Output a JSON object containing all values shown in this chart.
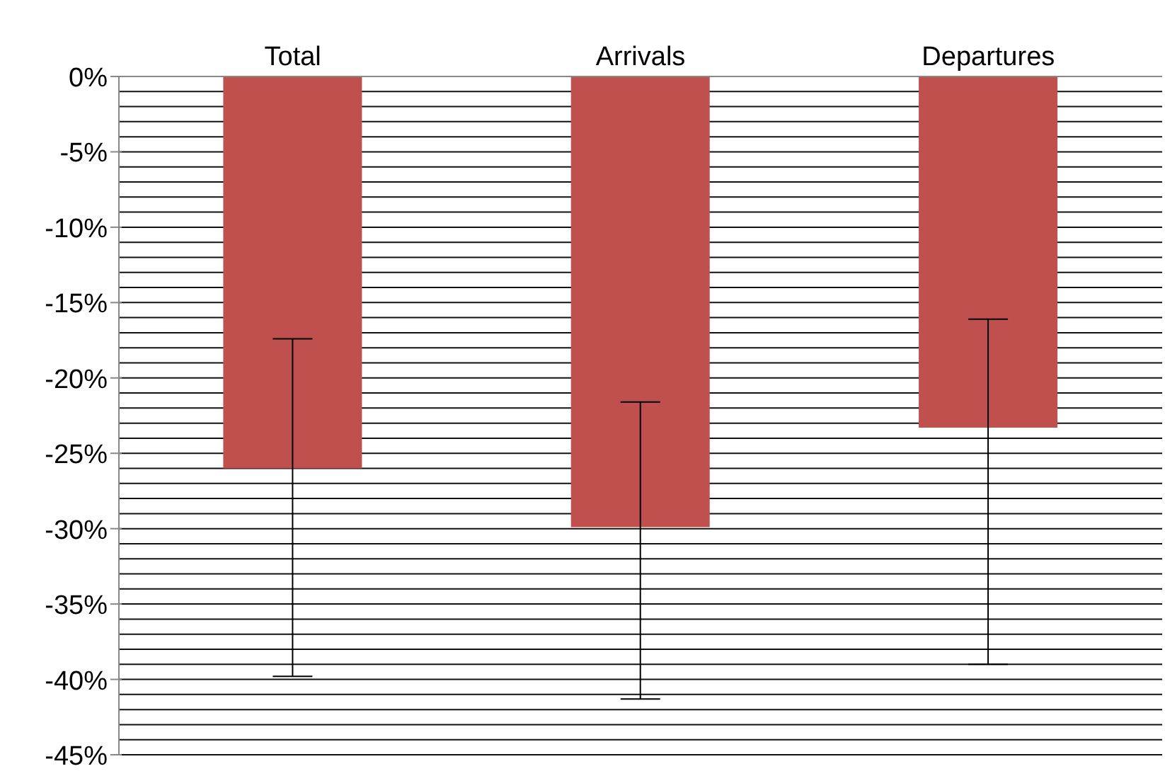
{
  "chart_data": {
    "type": "bar",
    "categories": [
      "Total",
      "Arrivals",
      "Departures"
    ],
    "values": [
      -26,
      -29.9,
      -23.3
    ],
    "errors": [
      [
        -39.8,
        -17.4
      ],
      [
        -41.3,
        -21.6
      ],
      [
        -39.0,
        -16.1
      ]
    ],
    "color": "#c0504d",
    "ylim": [
      -45,
      0
    ],
    "yticks": [
      {
        "value": 0,
        "label": "0%"
      },
      {
        "value": -1,
        "label": null
      },
      {
        "value": -2,
        "label": null
      },
      {
        "value": -3,
        "label": null
      },
      {
        "value": -4,
        "label": null
      },
      {
        "value": -5,
        "label": "-5%"
      },
      {
        "value": -6,
        "label": null
      },
      {
        "value": -7,
        "label": null
      },
      {
        "value": -8,
        "label": null
      },
      {
        "value": -9,
        "label": null
      },
      {
        "value": -10,
        "label": "-10%"
      },
      {
        "value": -11,
        "label": null
      },
      {
        "value": -12,
        "label": null
      },
      {
        "value": -13,
        "label": null
      },
      {
        "value": -14,
        "label": null
      },
      {
        "value": -15,
        "label": "-15%"
      },
      {
        "value": -16,
        "label": null
      },
      {
        "value": -17,
        "label": null
      },
      {
        "value": -18,
        "label": null
      },
      {
        "value": -19,
        "label": null
      },
      {
        "value": -20,
        "label": "-20%"
      },
      {
        "value": -21,
        "label": null
      },
      {
        "value": -22,
        "label": null
      },
      {
        "value": -23,
        "label": null
      },
      {
        "value": -24,
        "label": null
      },
      {
        "value": -25,
        "label": "-25%"
      },
      {
        "value": -26,
        "label": null
      },
      {
        "value": -27,
        "label": null
      },
      {
        "value": -28,
        "label": null
      },
      {
        "value": -29,
        "label": null
      },
      {
        "value": -30,
        "label": "-30%"
      },
      {
        "value": -31,
        "label": null
      },
      {
        "value": -32,
        "label": null
      },
      {
        "value": -33,
        "label": null
      },
      {
        "value": -34,
        "label": null
      },
      {
        "value": -35,
        "label": "-35%"
      },
      {
        "value": -36,
        "label": null
      },
      {
        "value": -37,
        "label": null
      },
      {
        "value": -38,
        "label": null
      },
      {
        "value": -39,
        "label": null
      },
      {
        "value": -40,
        "label": "-40%"
      },
      {
        "value": -41,
        "label": null
      },
      {
        "value": -42,
        "label": null
      },
      {
        "value": -43,
        "label": null
      },
      {
        "value": -44,
        "label": null
      },
      {
        "value": -45,
        "label": "-45%"
      }
    ],
    "grid": "y",
    "legend": false
  }
}
